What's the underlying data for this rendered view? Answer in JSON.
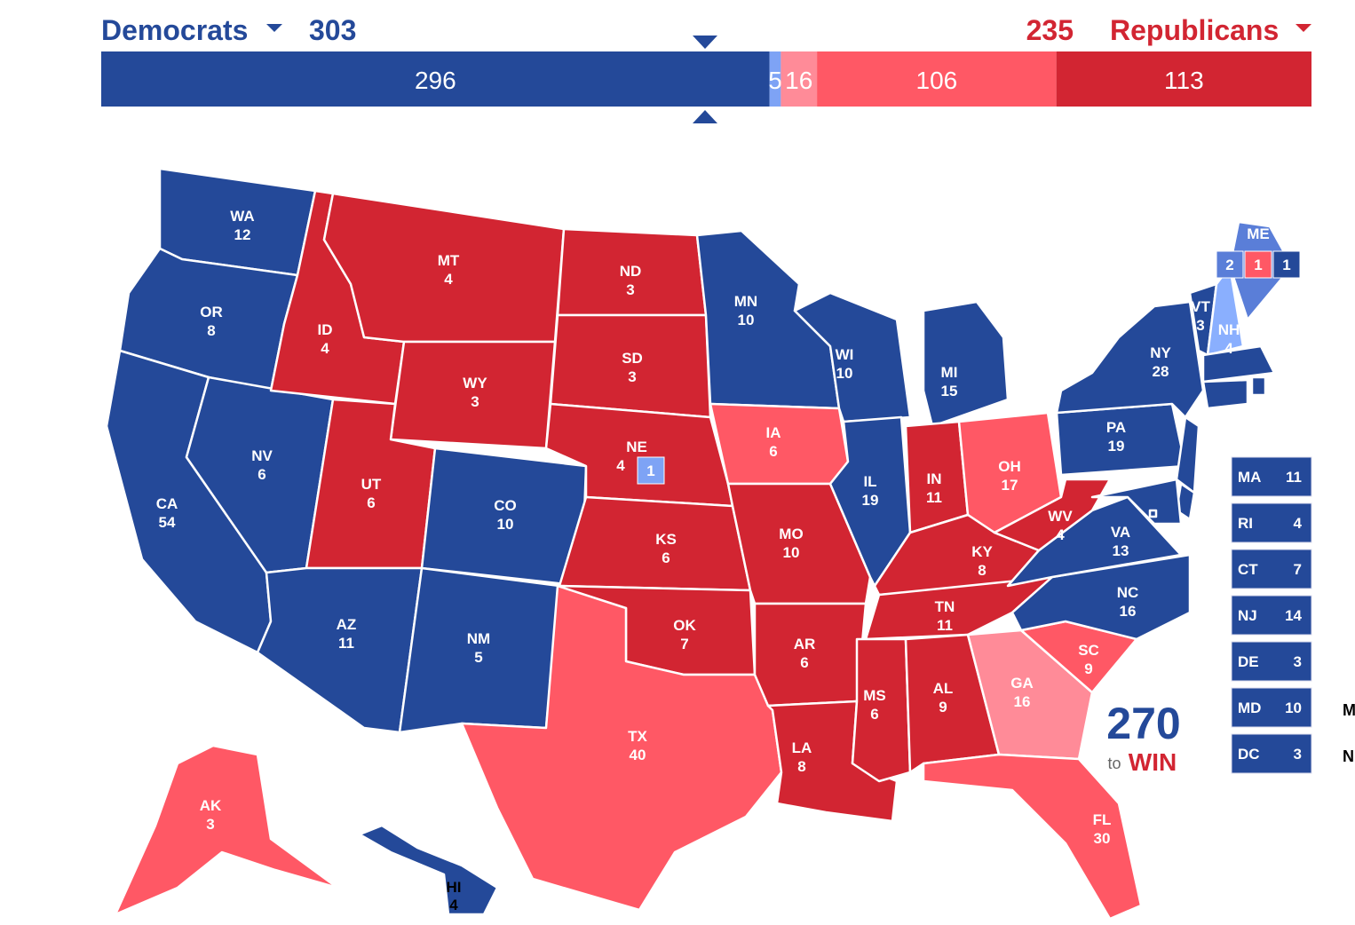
{
  "header": {
    "dem_label": "Democrats",
    "dem_total": 303,
    "rep_total": 235,
    "rep_label": "Republicans"
  },
  "bar": [
    {
      "value": 296,
      "color": "#244999"
    },
    {
      "value": 5,
      "color": "#7ea3f5"
    },
    {
      "value": 16,
      "color": "#ff8b98"
    },
    {
      "value": 106,
      "color": "#ff5865"
    },
    {
      "value": 113,
      "color": "#d22532"
    }
  ],
  "states": [
    {
      "abbr": "WA",
      "votes": 12,
      "color": "#244999"
    },
    {
      "abbr": "OR",
      "votes": 8,
      "color": "#244999"
    },
    {
      "abbr": "CA",
      "votes": 54,
      "color": "#244999"
    },
    {
      "abbr": "NV",
      "votes": 6,
      "color": "#244999"
    },
    {
      "abbr": "ID",
      "votes": 4,
      "color": "#d22532"
    },
    {
      "abbr": "MT",
      "votes": 4,
      "color": "#d22532"
    },
    {
      "abbr": "WY",
      "votes": 3,
      "color": "#d22532"
    },
    {
      "abbr": "UT",
      "votes": 6,
      "color": "#d22532"
    },
    {
      "abbr": "CO",
      "votes": 10,
      "color": "#244999"
    },
    {
      "abbr": "AZ",
      "votes": 11,
      "color": "#244999"
    },
    {
      "abbr": "NM",
      "votes": 5,
      "color": "#244999"
    },
    {
      "abbr": "ND",
      "votes": 3,
      "color": "#d22532"
    },
    {
      "abbr": "SD",
      "votes": 3,
      "color": "#d22532"
    },
    {
      "abbr": "NE",
      "votes": 4,
      "color": "#d22532",
      "split": [
        {
          "votes": 1,
          "color": "#7ea3f5"
        }
      ]
    },
    {
      "abbr": "KS",
      "votes": 6,
      "color": "#d22532"
    },
    {
      "abbr": "OK",
      "votes": 7,
      "color": "#d22532"
    },
    {
      "abbr": "TX",
      "votes": 40,
      "color": "#ff5865"
    },
    {
      "abbr": "MN",
      "votes": 10,
      "color": "#244999"
    },
    {
      "abbr": "IA",
      "votes": 6,
      "color": "#ff5865"
    },
    {
      "abbr": "MO",
      "votes": 10,
      "color": "#d22532"
    },
    {
      "abbr": "AR",
      "votes": 6,
      "color": "#d22532"
    },
    {
      "abbr": "LA",
      "votes": 8,
      "color": "#d22532"
    },
    {
      "abbr": "WI",
      "votes": 10,
      "color": "#244999"
    },
    {
      "abbr": "IL",
      "votes": 19,
      "color": "#244999"
    },
    {
      "abbr": "MI",
      "votes": 15,
      "color": "#244999"
    },
    {
      "abbr": "IN",
      "votes": 11,
      "color": "#d22532"
    },
    {
      "abbr": "OH",
      "votes": 17,
      "color": "#ff5865"
    },
    {
      "abbr": "KY",
      "votes": 8,
      "color": "#d22532"
    },
    {
      "abbr": "TN",
      "votes": 11,
      "color": "#d22532"
    },
    {
      "abbr": "MS",
      "votes": 6,
      "color": "#d22532"
    },
    {
      "abbr": "AL",
      "votes": 9,
      "color": "#d22532"
    },
    {
      "abbr": "GA",
      "votes": 16,
      "color": "#ff8b98"
    },
    {
      "abbr": "FL",
      "votes": 30,
      "color": "#ff5865"
    },
    {
      "abbr": "SC",
      "votes": 9,
      "color": "#ff5865"
    },
    {
      "abbr": "NC",
      "votes": 16,
      "color": "#244999"
    },
    {
      "abbr": "VA",
      "votes": 13,
      "color": "#244999"
    },
    {
      "abbr": "WV",
      "votes": 4,
      "color": "#d22532"
    },
    {
      "abbr": "PA",
      "votes": 19,
      "color": "#244999"
    },
    {
      "abbr": "NY",
      "votes": 28,
      "color": "#244999"
    },
    {
      "abbr": "VT",
      "votes": 3,
      "color": "#244999"
    },
    {
      "abbr": "NH",
      "votes": 4,
      "color": "#8aaffe"
    },
    {
      "abbr": "ME",
      "color": "#5a7ed8",
      "split": [
        {
          "votes": 2,
          "color": "#5a7ed8"
        },
        {
          "votes": 1,
          "color": "#ff5865"
        },
        {
          "votes": 1,
          "color": "#244999"
        }
      ]
    },
    {
      "abbr": "AK",
      "votes": 3,
      "color": "#ff5865"
    },
    {
      "abbr": "HI",
      "votes": 4,
      "color": "#244999"
    }
  ],
  "small_states": [
    {
      "abbr": "MA",
      "votes": 11,
      "color": "#244999"
    },
    {
      "abbr": "RI",
      "votes": 4,
      "color": "#244999"
    },
    {
      "abbr": "CT",
      "votes": 7,
      "color": "#244999"
    },
    {
      "abbr": "NJ",
      "votes": 14,
      "color": "#244999"
    },
    {
      "abbr": "DE",
      "votes": 3,
      "color": "#244999"
    },
    {
      "abbr": "MD",
      "votes": 10,
      "color": "#244999"
    },
    {
      "abbr": "DC",
      "votes": 3,
      "color": "#244999"
    }
  ],
  "logo": {
    "number": "270",
    "small": "to",
    "word": "WIN"
  },
  "cut_off_labels": [
    "M",
    "N"
  ]
}
